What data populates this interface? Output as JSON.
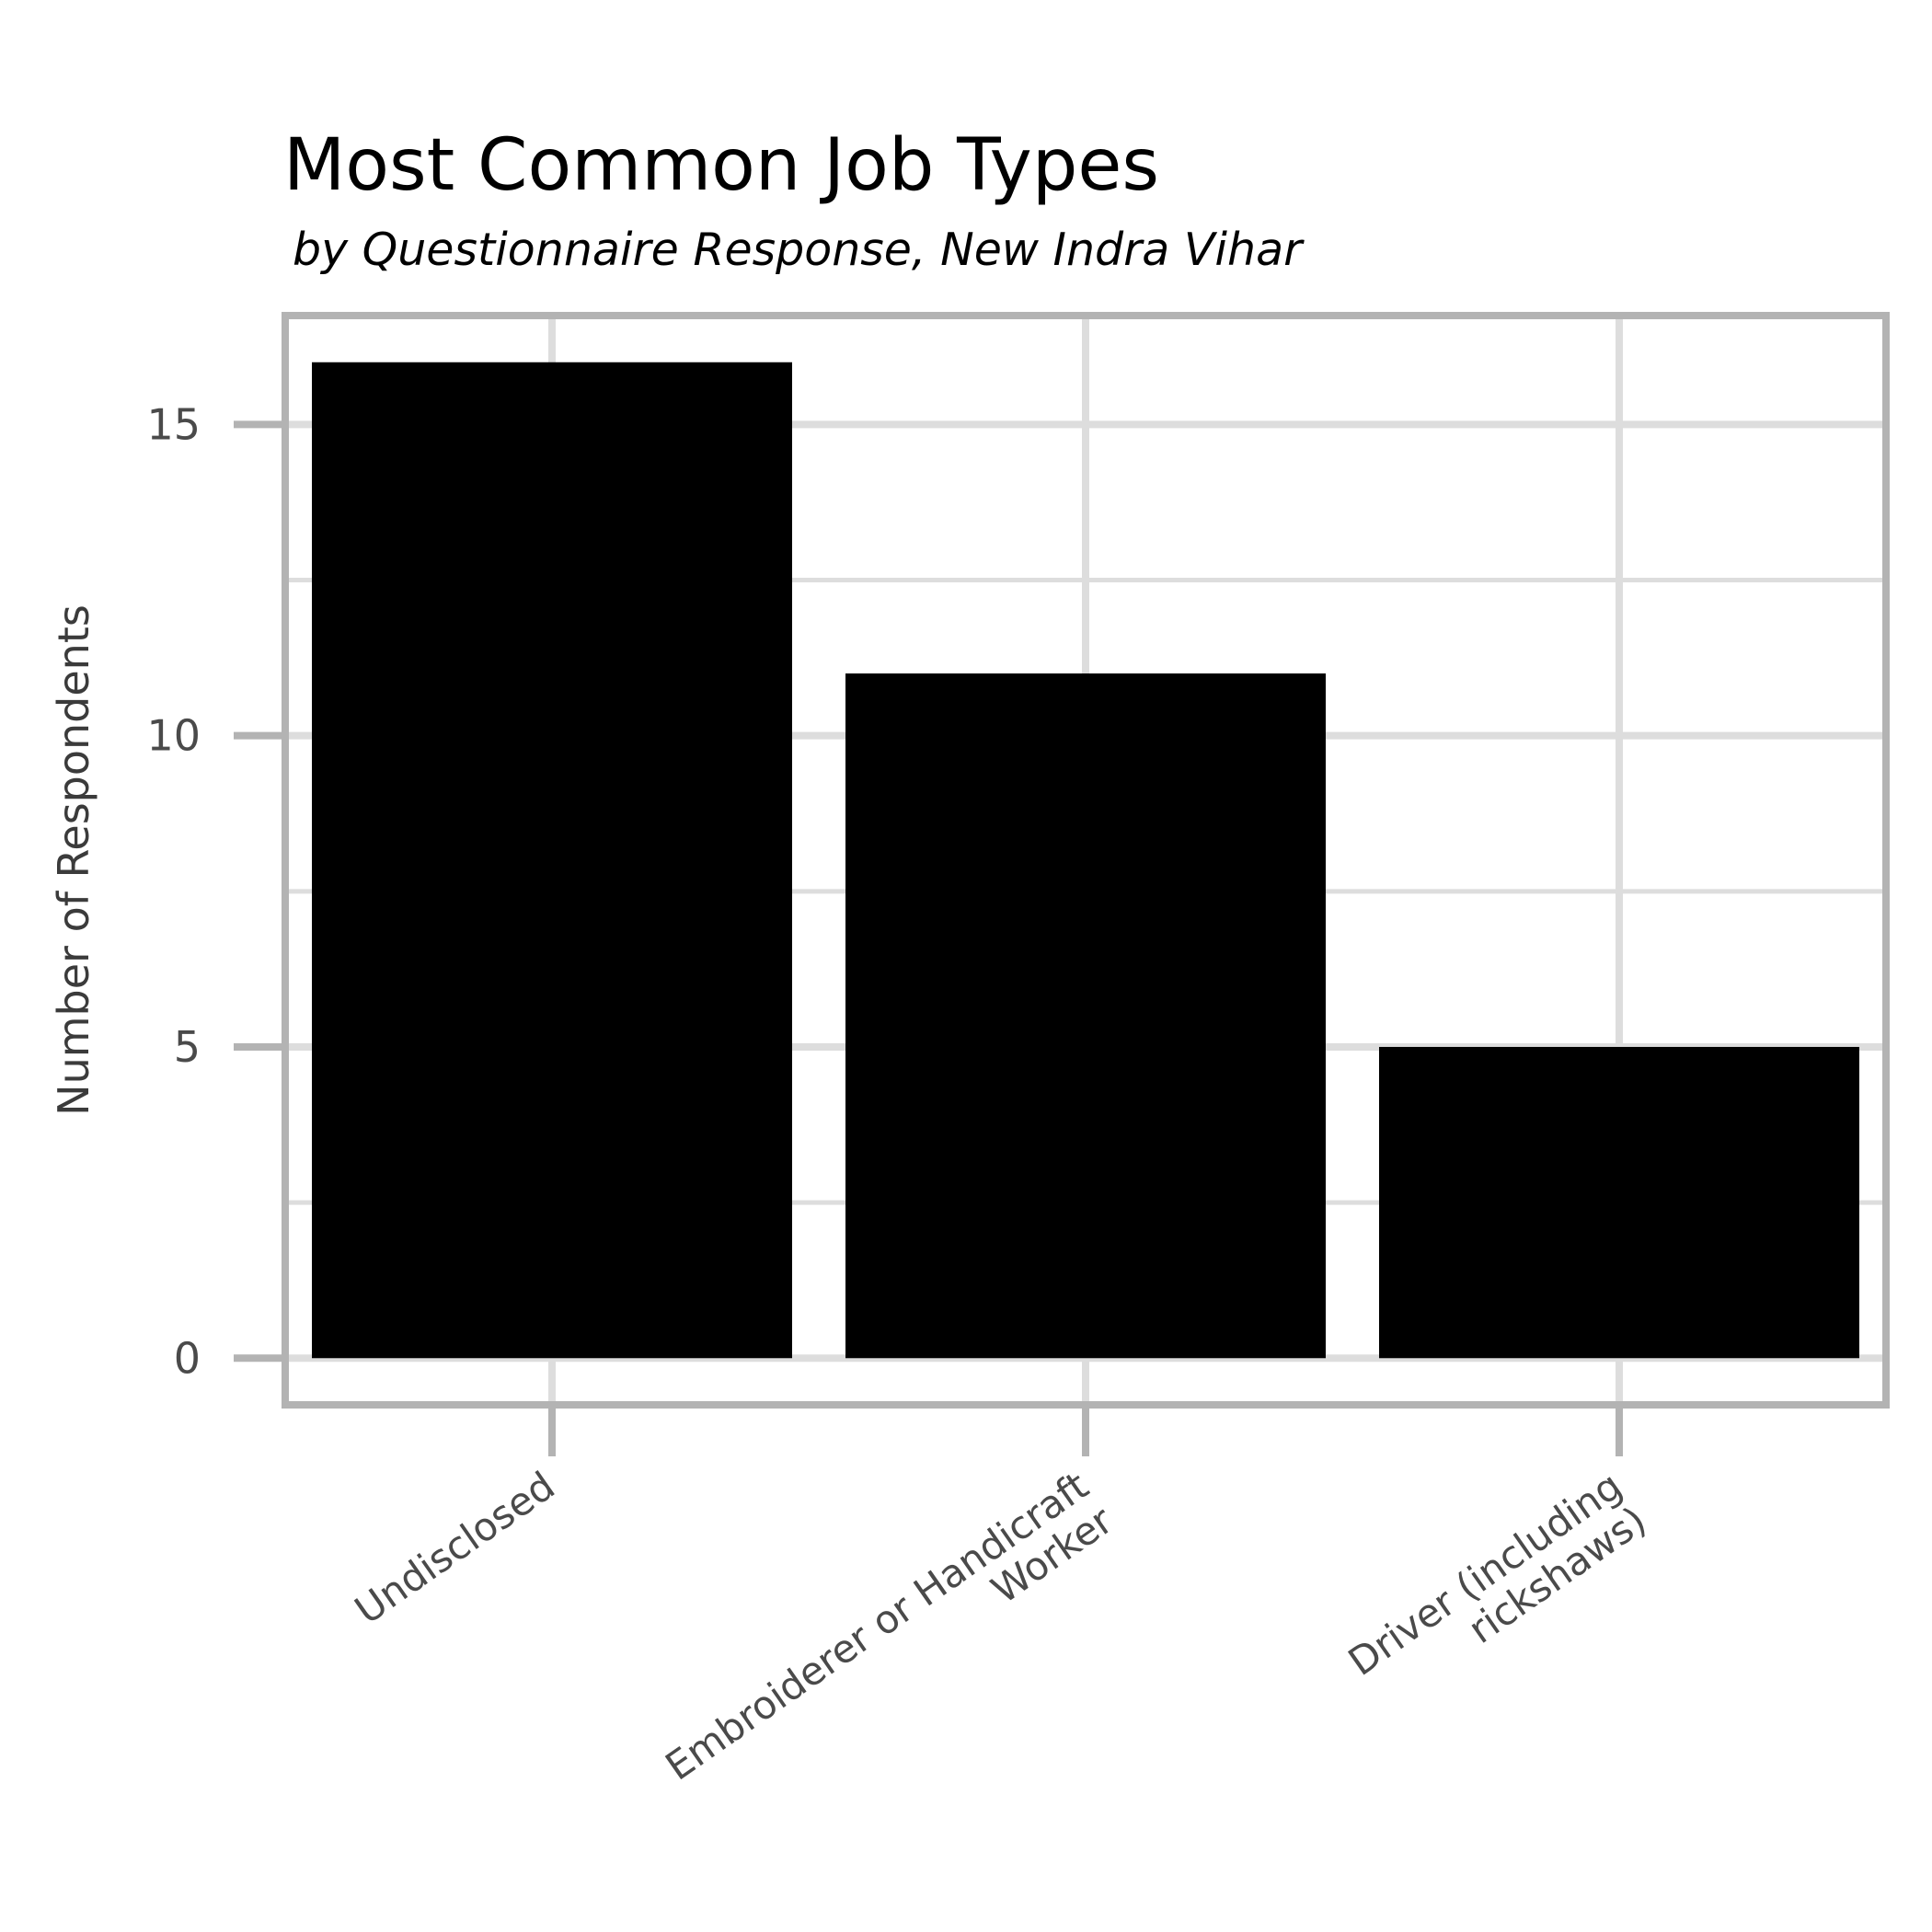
{
  "chart_data": {
    "type": "bar",
    "title": "Most Common Job Types",
    "subtitle": "by Questionnaire Response, New Indra Vihar",
    "xlabel": "",
    "ylabel": "Number of Respondents",
    "categories": [
      [
        "Undisclosed"
      ],
      [
        "Embroiderer or Handicraft",
        "Worker"
      ],
      [
        "Driver (including",
        "rickshaws)"
      ]
    ],
    "values": [
      16,
      11,
      5
    ],
    "ylim": [
      -0.75,
      16.75
    ],
    "yticks": [
      0,
      5,
      10,
      15
    ],
    "minor_yticks": [
      2.5,
      7.5,
      12.5
    ],
    "grid": true,
    "legend": "none",
    "colors": {
      "bar": "#000000",
      "grid": "#dddddd",
      "frame": "#b3b3b3",
      "tick": "#b3b3b3"
    }
  }
}
